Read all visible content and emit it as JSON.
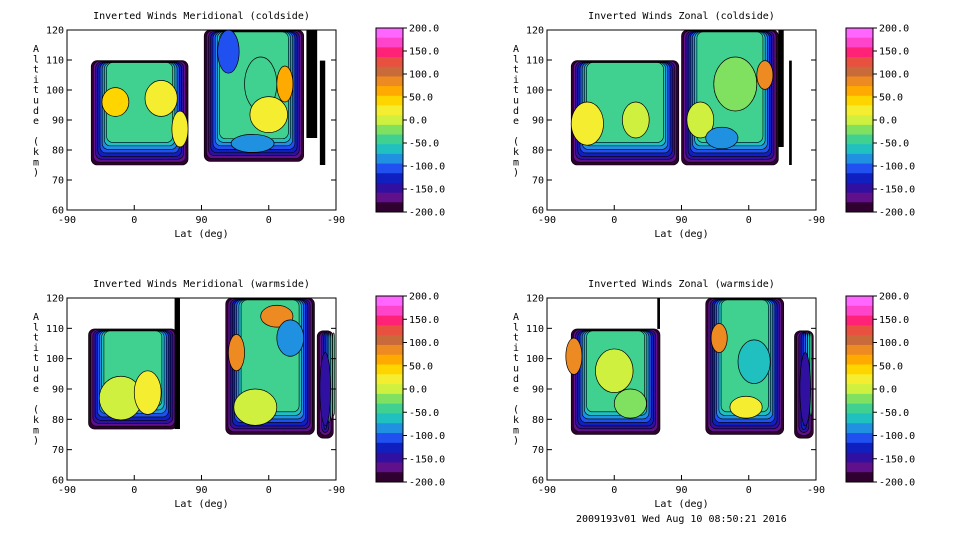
{
  "footer": "2009193v01 Wed Aug 10 08:50:21 2016",
  "colorbar": {
    "labels": [
      "200.0",
      "150.0",
      "100.0",
      "50.0",
      "0.0",
      "-50.0",
      "-100.0",
      "-150.0",
      "-200.0"
    ],
    "colors": [
      "#ff66ff",
      "#ff44cc",
      "#ff2277",
      "#e85040",
      "#c86a3a",
      "#ee8a22",
      "#ffaa00",
      "#ffd500",
      "#f5ee30",
      "#d0f040",
      "#80e060",
      "#40d090",
      "#20c0c0",
      "#2090e0",
      "#2050f0",
      "#1020c0",
      "#3010a0",
      "#60108a",
      "#300030"
    ]
  },
  "chart_data": [
    {
      "type": "heatmap",
      "title": "Inverted Winds Meridional (coldside)",
      "xlabel": "Lat (deg)",
      "ylabel": "Altitude (km)",
      "x_ticks": [
        "-90",
        "0",
        "90",
        "0",
        "-90"
      ],
      "y_ticks": [
        "120",
        "110",
        "100",
        "90",
        "80",
        "70",
        "60"
      ],
      "ylim": [
        60,
        120
      ],
      "x_range_deg_along_orbit": [
        -90,
        270
      ],
      "colorbar_range": [
        -200,
        200
      ]
    },
    {
      "type": "heatmap",
      "title": "Inverted Winds Zonal (coldside)",
      "xlabel": "Lat (deg)",
      "ylabel": "Altitude (km)",
      "x_ticks": [
        "-90",
        "0",
        "90",
        "0",
        "-90"
      ],
      "y_ticks": [
        "120",
        "110",
        "100",
        "90",
        "80",
        "70",
        "60"
      ],
      "ylim": [
        60,
        120
      ],
      "x_range_deg_along_orbit": [
        -90,
        270
      ],
      "colorbar_range": [
        -200,
        200
      ]
    },
    {
      "type": "heatmap",
      "title": "Inverted Winds Meridional (warmside)",
      "xlabel": "Lat (deg)",
      "ylabel": "Altitude (km)",
      "x_ticks": [
        "-90",
        "0",
        "90",
        "0",
        "-90"
      ],
      "y_ticks": [
        "120",
        "110",
        "100",
        "90",
        "80",
        "70",
        "60"
      ],
      "ylim": [
        60,
        120
      ],
      "x_range_deg_along_orbit": [
        -90,
        270
      ],
      "colorbar_range": [
        -200,
        200
      ]
    },
    {
      "type": "heatmap",
      "title": "Inverted Winds Zonal (warmside)",
      "xlabel": "Lat (deg)",
      "ylabel": "Altitude (km)",
      "x_ticks": [
        "-90",
        "0",
        "90",
        "0",
        "-90"
      ],
      "y_ticks": [
        "120",
        "110",
        "100",
        "90",
        "80",
        "70",
        "60"
      ],
      "ylim": [
        60,
        120
      ],
      "x_range_deg_along_orbit": [
        -90,
        270
      ],
      "colorbar_range": [
        -200,
        200
      ]
    }
  ]
}
